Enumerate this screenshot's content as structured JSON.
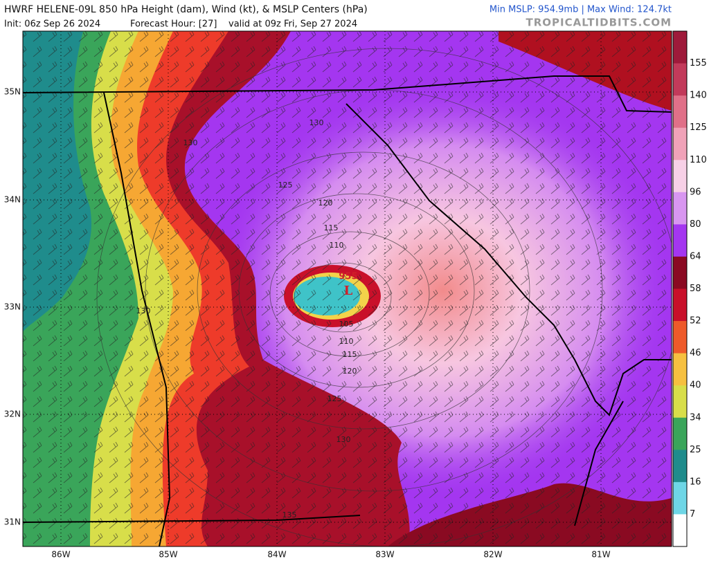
{
  "header": {
    "title": "HWRF HELENE-09L 850 hPa Height (dam), Wind (kt), & MSLP Centers (hPa)",
    "init": "Init: 06z Sep 26 2024",
    "forecast_hour": "Forecast Hour: [27]",
    "valid": "valid at 09z Fri, Sep 27 2024",
    "stats": "Min MSLP: 954.9mb | Max Wind: 124.7kt",
    "brand": "TROPICALTIDBITS.COM"
  },
  "latitudes": [
    "35N",
    "34N",
    "33N",
    "32N",
    "31N"
  ],
  "longitudes": [
    "86W",
    "85W",
    "84W",
    "83W",
    "82W",
    "81W"
  ],
  "colorbar": [
    "155",
    "140",
    "125",
    "110",
    "96",
    "80",
    "64",
    "58",
    "52",
    "46",
    "40",
    "34",
    "25",
    "16",
    "7"
  ],
  "contour_labels": [
    "130",
    "125",
    "120",
    "115",
    "110",
    "105",
    "110",
    "115",
    "120",
    "125",
    "130",
    "135",
    "130",
    "130"
  ],
  "low": {
    "pressure": "955",
    "symbol": "L"
  }
}
